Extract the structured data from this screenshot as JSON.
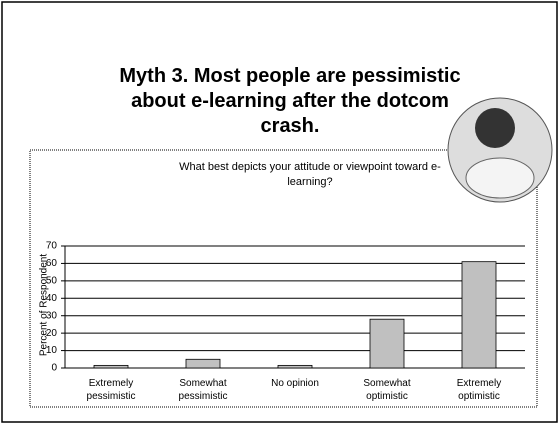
{
  "title": "Myth 3. Most people are pessimistic about e-learning after the dotcom crash.",
  "chart_data": {
    "type": "bar",
    "title": "What best depicts your attitude or viewpoint toward e-learning?",
    "y_label": "Percent of Respondent",
    "categories": [
      "Extremely pessimistic",
      "Somewhat pessimistic",
      "No opinion",
      "Somewhat optimistic",
      "Extremely optimistic"
    ],
    "values": [
      1.5,
      5,
      1.5,
      28,
      61
    ],
    "color": "#c0c0c0",
    "ylim": [
      0,
      70
    ],
    "yticks": [
      0,
      10,
      20,
      30,
      40,
      50,
      60,
      70
    ],
    "grid": true
  }
}
